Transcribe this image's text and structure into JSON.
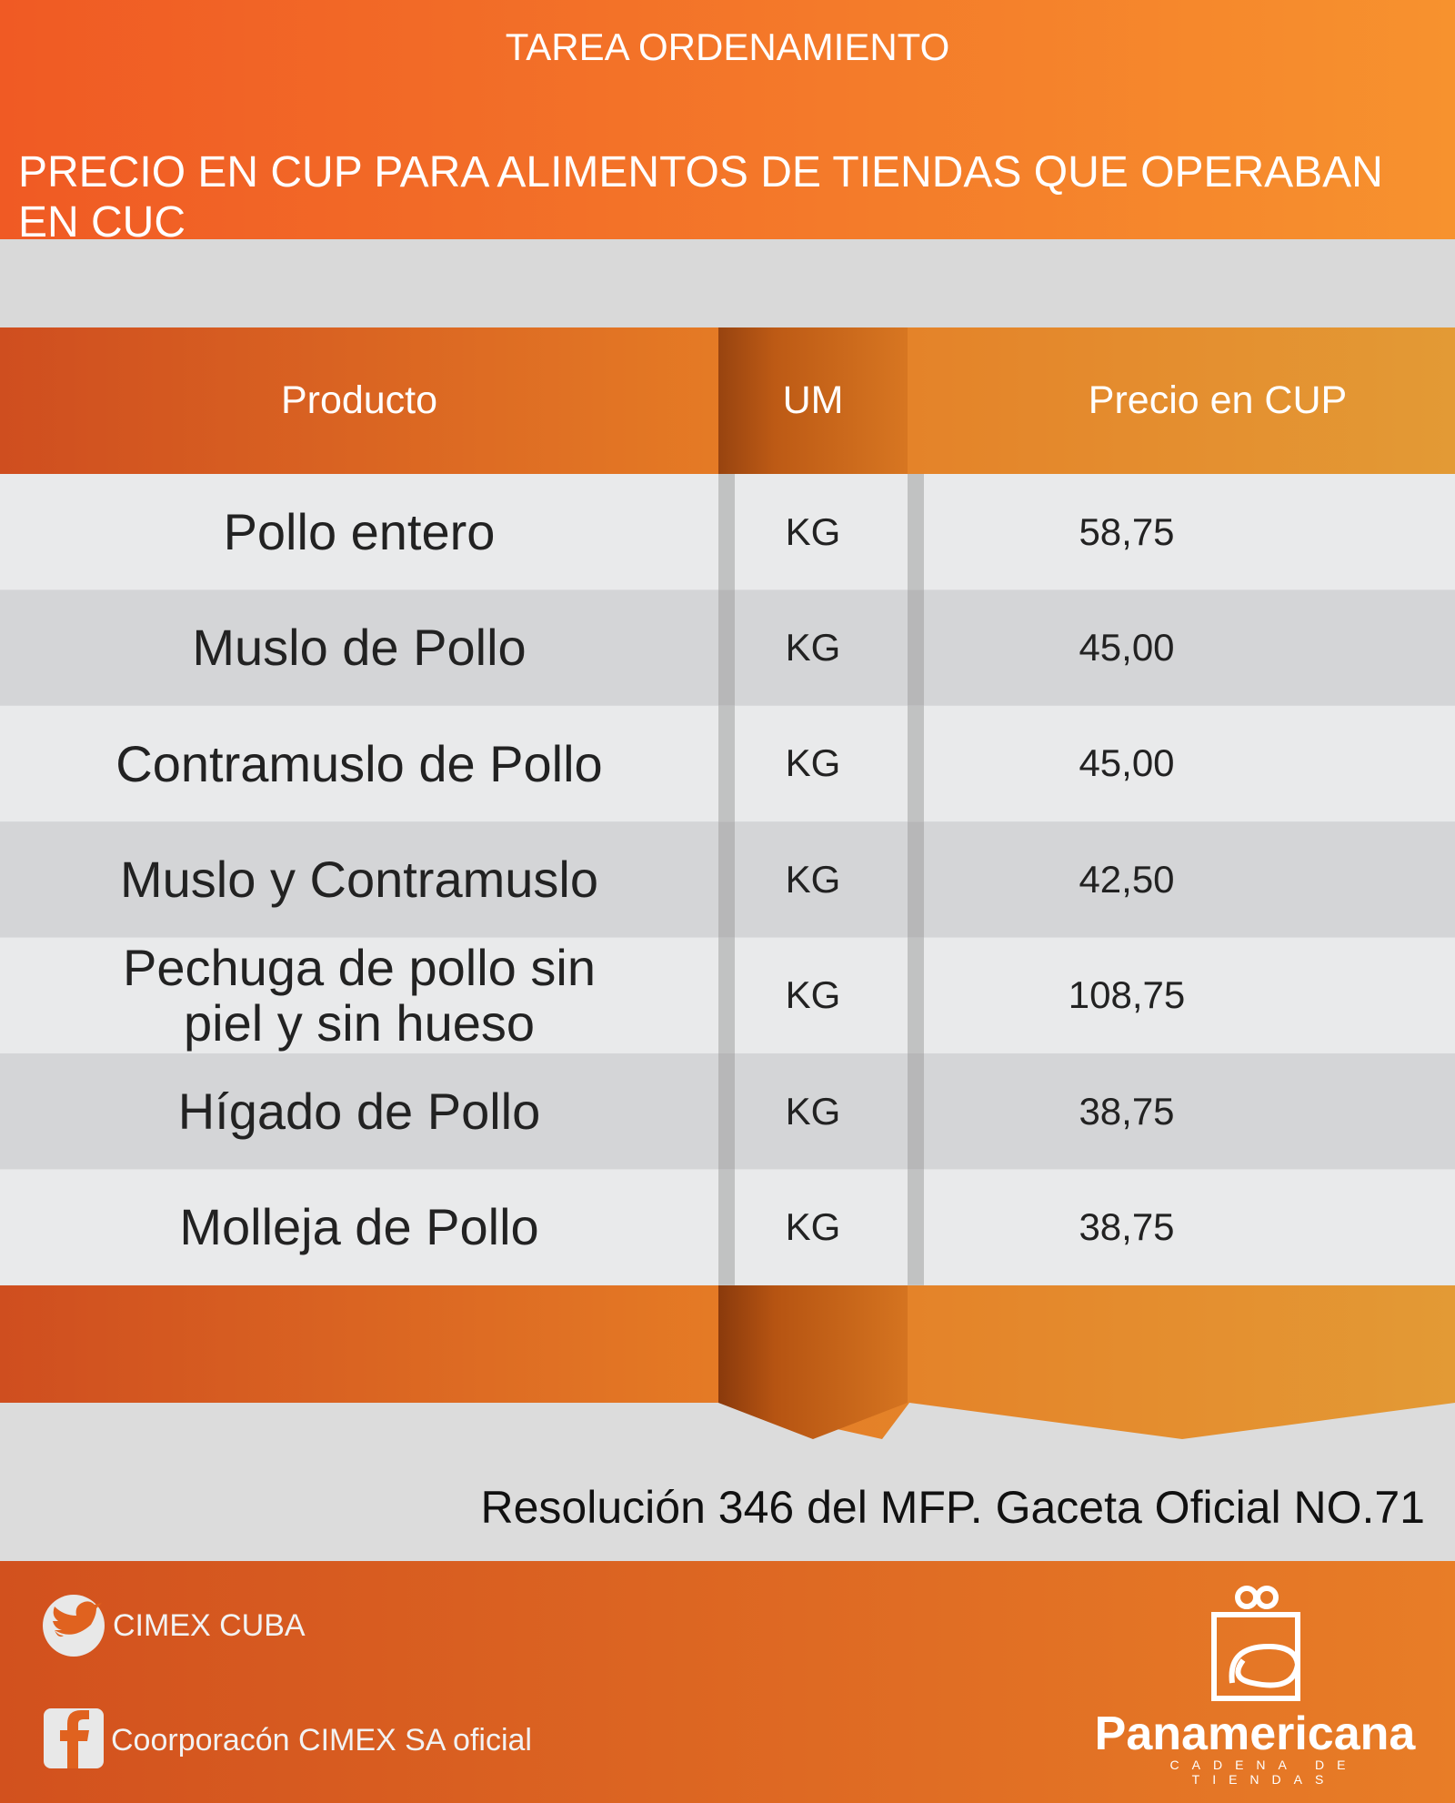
{
  "header": {
    "title": "TAREA  ORDENAMIENTO",
    "subtitle": "PRECIO EN CUP PARA ALIMENTOS DE TIENDAS QUE OPERABAN EN CUC"
  },
  "table": {
    "columns": [
      "Producto",
      "UM",
      "Precio en CUP"
    ],
    "rows": [
      [
        "Pollo entero",
        "KG",
        "58,75"
      ],
      [
        "Muslo de Pollo",
        "KG",
        "45,00"
      ],
      [
        "Contramuslo de Pollo",
        "KG",
        "45,00"
      ],
      [
        "Muslo y Contramuslo",
        "KG",
        "42,50"
      ],
      [
        "Pechuga de pollo sin piel y sin hueso",
        "KG",
        "108,75"
      ],
      [
        "Hígado de Pollo",
        "KG",
        "38,75"
      ],
      [
        "Molleja de Pollo",
        "KG",
        "38,75"
      ]
    ]
  },
  "note": "Resolución 346 del MFP. Gaceta Oficial NO.71",
  "footer": {
    "twitter": "CIMEX CUBA",
    "facebook": "Coorporacón CIMEX SA oficial",
    "brand": "Panamericana",
    "brand_tagline": "CADENA DE TIENDAS"
  }
}
